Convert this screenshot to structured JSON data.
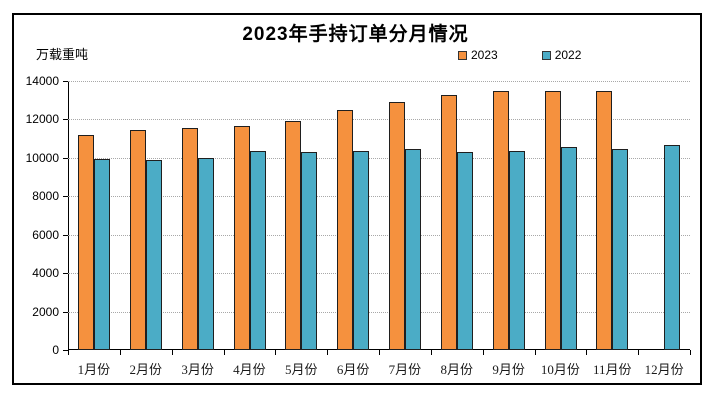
{
  "chart_data": {
    "type": "bar",
    "title": "2023年手持订单分月情况",
    "ylabel": "万载重吨",
    "xlabel": "",
    "categories": [
      "1月份",
      "2月份",
      "3月份",
      "4月份",
      "5月份",
      "6月份",
      "7月份",
      "8月份",
      "9月份",
      "10月份",
      "11月份",
      "12月份"
    ],
    "series": [
      {
        "name": "2023",
        "color": "#F5913E",
        "values": [
          11100,
          11350,
          11450,
          11550,
          11800,
          12400,
          12800,
          13150,
          13400,
          13400,
          13400,
          null
        ]
      },
      {
        "name": "2022",
        "color": "#4BACC6",
        "values": [
          9850,
          9800,
          9900,
          10250,
          10200,
          10250,
          10350,
          10200,
          10250,
          10450,
          10350,
          10550
        ]
      }
    ],
    "ylim": [
      0,
      14000
    ],
    "yticks": [
      0,
      2000,
      4000,
      6000,
      8000,
      10000,
      12000,
      14000
    ],
    "grid": "horizontal-dotted",
    "legend_position": "top-right",
    "bar_border_color": "#1f1f1f"
  }
}
